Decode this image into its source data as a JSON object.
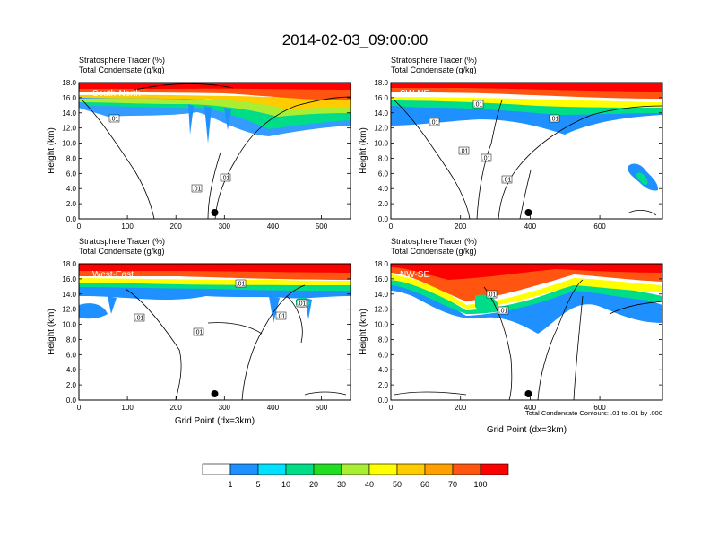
{
  "title": "2014-02-03_09:00:00",
  "chart_data": [
    {
      "type": "heatmap",
      "label": "South-North",
      "field_left": "Stratosphere Tracer   (%)",
      "field_left2": "Total Condensate   (g/kg)",
      "xlabel": "",
      "ylabel": "Height (km)",
      "xlim": [
        0,
        560
      ],
      "ylim": [
        0,
        18
      ],
      "xticks": [
        0,
        100,
        200,
        300,
        400,
        500
      ],
      "yticks": [
        0,
        2,
        4,
        6,
        8,
        10,
        12,
        14,
        16,
        18
      ],
      "marker_x": 280,
      "contour_labels": [
        ".01",
        ".01",
        ".01"
      ]
    },
    {
      "type": "heatmap",
      "label": "SW-NE",
      "field_left": "Stratosphere Tracer   (%)",
      "field_left2": "Total Condensate   (g/kg)",
      "xlabel": "",
      "ylabel": "Height (km)",
      "xlim": [
        0,
        780
      ],
      "ylim": [
        0,
        18
      ],
      "xticks": [
        0,
        200,
        400,
        600
      ],
      "yticks": [
        0,
        2,
        4,
        6,
        8,
        10,
        12,
        14,
        16,
        18
      ],
      "marker_x": 395,
      "contour_labels": [
        ".01",
        ".01",
        ".01",
        ".01",
        ".01",
        ".01"
      ]
    },
    {
      "type": "heatmap",
      "label": "West-East",
      "field_left": "Stratosphere Tracer   (%)",
      "field_left2": "Total Condensate   (g/kg)",
      "xlabel": "Grid Point (dx=3km)",
      "ylabel": "Height (km)",
      "xlim": [
        0,
        560
      ],
      "ylim": [
        0,
        18
      ],
      "xticks": [
        0,
        100,
        200,
        300,
        400,
        500
      ],
      "yticks": [
        0,
        2,
        4,
        6,
        8,
        10,
        12,
        14,
        16,
        18
      ],
      "marker_x": 280,
      "contour_labels": [
        ".01",
        ".01",
        ".01",
        ".01",
        ".01"
      ]
    },
    {
      "type": "heatmap",
      "label": "NW-SE",
      "field_left": "Stratosphere Tracer   (%)",
      "field_left2": "Total Condensate   (g/kg)",
      "xlabel": "Grid Point (dx=3km)",
      "ylabel": "Height (km)",
      "xlim": [
        0,
        780
      ],
      "ylim": [
        0,
        18
      ],
      "xticks": [
        0,
        200,
        400,
        600
      ],
      "yticks": [
        0,
        2,
        4,
        6,
        8,
        10,
        12,
        14,
        16,
        18
      ],
      "marker_x": 395,
      "contour_labels": [
        ".01",
        ".01"
      ],
      "contour_note": "Total Condensate Contours: .01 to .01 by .000"
    }
  ],
  "colorbar": {
    "levels": [
      "1",
      "5",
      "10",
      "20",
      "30",
      "40",
      "50",
      "60",
      "70",
      "100"
    ],
    "colors": [
      "#ffffff",
      "#1e90ff",
      "#00e0ff",
      "#00dd88",
      "#22dd22",
      "#aaee33",
      "#ffff00",
      "#ffcc00",
      "#ffa000",
      "#ff5511",
      "#ff0000"
    ]
  }
}
